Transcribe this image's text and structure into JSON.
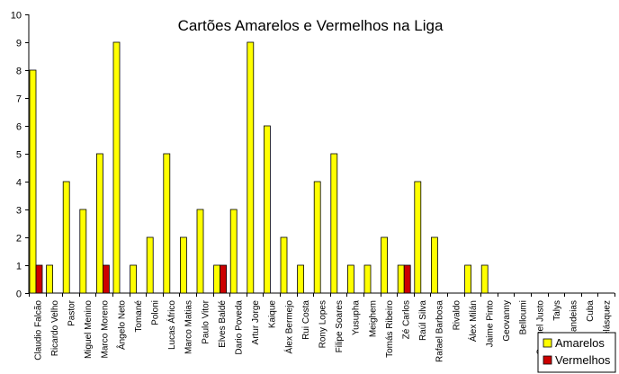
{
  "chart_data": {
    "type": "bar",
    "title": "Cartões Amarelos e Vermelhos na Liga",
    "xlabel": "",
    "ylabel": "",
    "ylim": [
      0,
      10
    ],
    "yticks": [
      0,
      1,
      2,
      3,
      4,
      5,
      6,
      7,
      8,
      9,
      10
    ],
    "grid": false,
    "legend_position": "bottom-right",
    "categories": [
      "Claudio Falcão",
      "Ricardo Velho",
      "Pastor",
      "Miguel Menino",
      "Marco Moreno",
      "Ângelo Neto",
      "Tomané",
      "Poloni",
      "Lucas Áfrico",
      "Marco Matias",
      "Paulo Vitor",
      "Elves Baldé",
      "Dario Poveda",
      "Artur Jorge",
      "Kaique",
      "Álex Bermejo",
      "Rui Costa",
      "Rony Lopes",
      "Filipe Soares",
      "Yusupha",
      "Meighem",
      "Tomás Ribeiro",
      "Zé Carlos",
      "Raúl Silva",
      "Rafael Barbosa",
      "Rivaldo",
      "Álex Milán",
      "Jaime Pinto",
      "Geovanny",
      "Belloumi",
      "Samuel Justo",
      "Talys",
      "Candeias",
      "Cuba",
      "Velásquez"
    ],
    "series": [
      {
        "name": "Amarelos",
        "color": "#ffff00",
        "values": [
          8,
          1,
          4,
          3,
          5,
          9,
          1,
          2,
          5,
          2,
          3,
          1,
          3,
          9,
          6,
          2,
          1,
          4,
          5,
          1,
          1,
          2,
          1,
          4,
          2,
          0,
          1,
          1,
          0,
          0,
          0,
          0,
          0,
          0,
          0
        ]
      },
      {
        "name": "Vermelhos",
        "color": "#cc0000",
        "values": [
          1,
          0,
          0,
          0,
          1,
          0,
          0,
          0,
          0,
          0,
          0,
          1,
          0,
          0,
          0,
          0,
          0,
          0,
          0,
          0,
          0,
          0,
          1,
          0,
          0,
          0,
          0,
          0,
          0,
          0,
          0,
          0,
          0,
          0,
          0
        ]
      }
    ]
  }
}
